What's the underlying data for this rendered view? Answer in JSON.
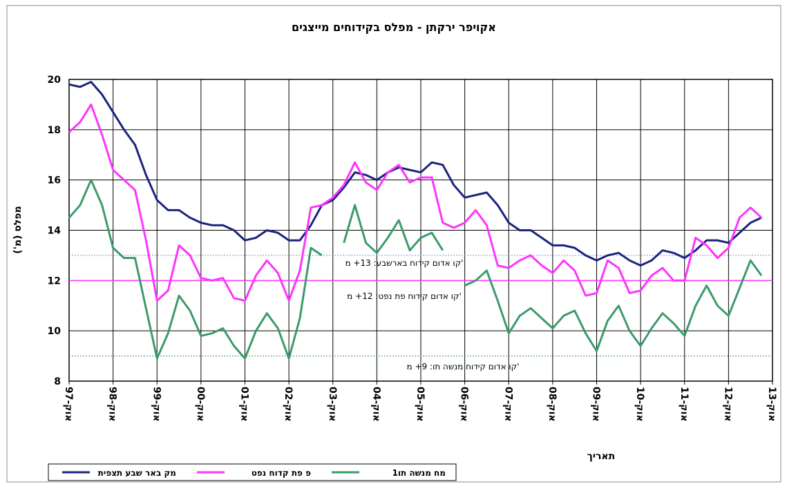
{
  "chart_data": {
    "type": "line",
    "title": "אקויפר ירקתן - מפלס בקידוחים מייצגים",
    "y_label": "מפלס (מ')",
    "x_label": "תאריך",
    "ylim": [
      8,
      20
    ],
    "yticks": [
      8,
      10,
      12,
      14,
      16,
      18,
      20
    ],
    "xlim": [
      "1997-10",
      "2013-10"
    ],
    "xticks": [
      {
        "value": "1997-10",
        "label": "אוק-97"
      },
      {
        "value": "1998-10",
        "label": "אוק-98"
      },
      {
        "value": "1999-10",
        "label": "אוק-99"
      },
      {
        "value": "2000-10",
        "label": "אוק-00"
      },
      {
        "value": "2001-10",
        "label": "אוק-01"
      },
      {
        "value": "2002-10",
        "label": "אוק-02"
      },
      {
        "value": "2003-10",
        "label": "אוק-03"
      },
      {
        "value": "2004-10",
        "label": "אוק-04"
      },
      {
        "value": "2005-10",
        "label": "אוק-05"
      },
      {
        "value": "2006-10",
        "label": "אוק-06"
      },
      {
        "value": "2007-10",
        "label": "אוק-07"
      },
      {
        "value": "2008-10",
        "label": "אוק-08"
      },
      {
        "value": "2009-10",
        "label": "אוק-09"
      },
      {
        "value": "2010-10",
        "label": "אוק-10"
      },
      {
        "value": "2011-10",
        "label": "אוק-11"
      },
      {
        "value": "2012-10",
        "label": "אוק-12"
      },
      {
        "value": "2013-10",
        "label": "אוק-13"
      }
    ],
    "grid": true,
    "legend": "bottom-left",
    "x": [
      "1997-10",
      "1998-01",
      "1998-04",
      "1998-07",
      "1998-10",
      "1999-01",
      "1999-04",
      "1999-07",
      "1999-10",
      "2000-01",
      "2000-04",
      "2000-07",
      "2000-10",
      "2001-01",
      "2001-04",
      "2001-07",
      "2001-10",
      "2002-01",
      "2002-04",
      "2002-07",
      "2002-10",
      "2003-01",
      "2003-04",
      "2003-07",
      "2003-10",
      "2004-01",
      "2004-04",
      "2004-07",
      "2004-10",
      "2005-01",
      "2005-04",
      "2005-07",
      "2005-10",
      "2006-01",
      "2006-04",
      "2006-07",
      "2006-10",
      "2007-01",
      "2007-04",
      "2007-07",
      "2007-10",
      "2008-01",
      "2008-04",
      "2008-07",
      "2008-10",
      "2009-01",
      "2009-04",
      "2009-07",
      "2009-10",
      "2010-01",
      "2010-04",
      "2010-07",
      "2010-10",
      "2011-01",
      "2011-04",
      "2011-07",
      "2011-10",
      "2012-01",
      "2012-04",
      "2012-07",
      "2012-10",
      "2013-01",
      "2013-04",
      "2013-07"
    ],
    "series": [
      {
        "name": "מק באר שבע תצפית",
        "color": "#1a237e",
        "values": [
          19.8,
          19.7,
          19.9,
          19.4,
          18.7,
          18.0,
          17.4,
          16.2,
          15.2,
          14.8,
          14.8,
          14.5,
          14.3,
          14.2,
          14.2,
          14.0,
          13.6,
          13.7,
          14.0,
          13.9,
          13.6,
          13.6,
          14.2,
          15.0,
          15.2,
          15.7,
          16.3,
          16.2,
          16.0,
          16.3,
          16.5,
          16.4,
          16.3,
          16.7,
          16.6,
          15.8,
          15.3,
          15.4,
          15.5,
          15.0,
          14.3,
          14.0,
          14.0,
          13.7,
          13.4,
          13.4,
          13.3,
          13.0,
          12.8,
          13.0,
          13.1,
          12.8,
          12.6,
          12.8,
          13.2,
          13.1,
          12.9,
          13.2,
          13.6,
          13.6,
          13.5,
          13.9,
          14.3,
          14.5
        ]
      },
      {
        "name": "פ פת קדוח נפט",
        "color": "#ff33ff",
        "values": [
          17.9,
          18.3,
          19.0,
          17.8,
          16.4,
          16.0,
          15.6,
          13.6,
          11.2,
          11.6,
          13.4,
          13.0,
          12.1,
          12.0,
          12.1,
          11.3,
          11.2,
          12.2,
          12.8,
          12.3,
          11.2,
          12.4,
          14.9,
          15.0,
          15.3,
          15.8,
          16.7,
          15.9,
          15.6,
          16.3,
          16.6,
          15.9,
          16.1,
          16.1,
          14.3,
          14.1,
          14.3,
          14.8,
          14.2,
          12.6,
          12.5,
          12.8,
          13.0,
          12.6,
          12.3,
          12.8,
          12.4,
          11.4,
          11.5,
          12.8,
          12.5,
          11.5,
          11.6,
          12.2,
          12.5,
          12.0,
          12.0,
          13.7,
          13.4,
          12.9,
          13.3,
          14.5,
          14.9,
          14.5
        ]
      },
      {
        "name": "מח מנשה תו1",
        "color": "#3a9a6a",
        "values": [
          14.5,
          15.0,
          16.0,
          15.0,
          13.3,
          12.9,
          12.9,
          10.9,
          8.9,
          9.9,
          11.4,
          10.8,
          9.8,
          9.9,
          10.1,
          9.4,
          8.9,
          10.0,
          10.7,
          10.1,
          8.9,
          10.5,
          13.3,
          13.0,
          null,
          13.5,
          15.0,
          13.5,
          13.1,
          13.7,
          14.4,
          13.2,
          13.7,
          13.9,
          13.2,
          null,
          11.8,
          12.0,
          12.4,
          11.2,
          9.9,
          10.6,
          10.9,
          10.5,
          10.1,
          10.6,
          10.8,
          9.9,
          9.2,
          10.4,
          11.0,
          10.0,
          9.4,
          10.1,
          10.7,
          10.3,
          9.8,
          11.0,
          11.8,
          11.0,
          10.6,
          11.7,
          12.8,
          12.2
        ]
      }
    ],
    "annotations": [
      {
        "text": "קו אדום קידוח בארשבע: 13+ מ'",
        "value": 13,
        "color": "#7b8ff0"
      },
      {
        "text": "קו אדום קידוח פת נפט: 12+ מ'",
        "value": 12,
        "color": "#ff33ff"
      },
      {
        "text": "קו אדום קידוח מנשה תו: 9+ מ'",
        "value": 9,
        "color": "#3a9a6a"
      }
    ]
  }
}
